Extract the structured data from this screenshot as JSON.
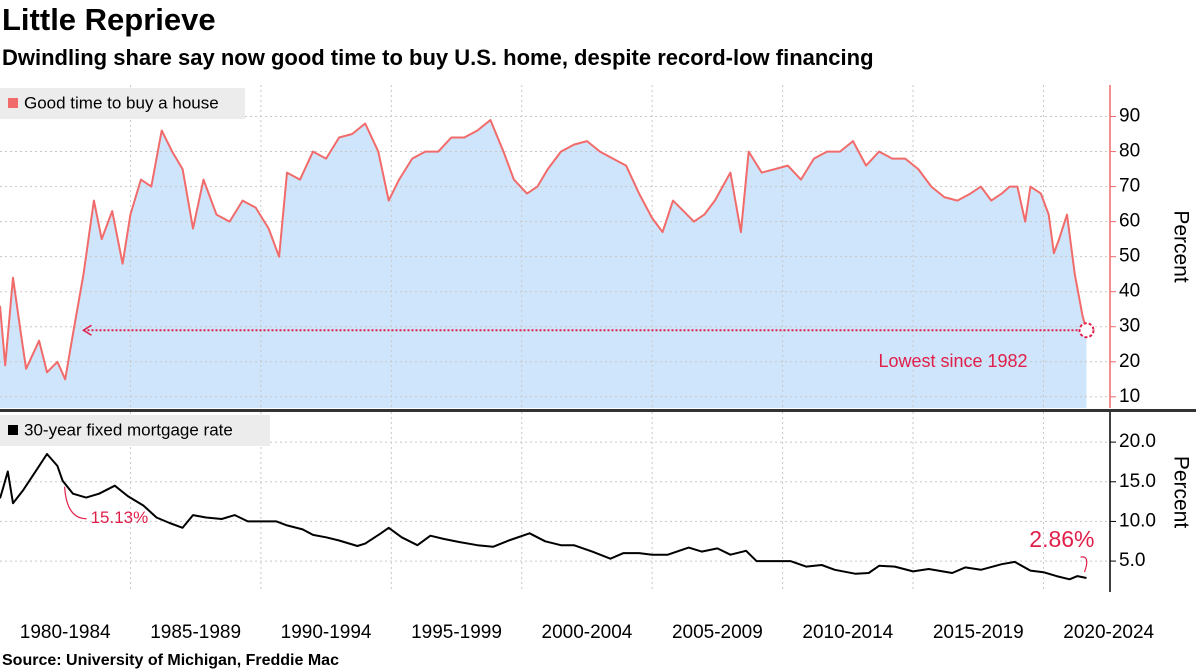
{
  "title": "Little Reprieve",
  "subtitle": "Dwindling share say now good time to buy U.S. home, despite record-low financing",
  "source": "Source: University of Michigan, Freddie Mac",
  "chart_data": [
    {
      "type": "area",
      "series": [
        {
          "name": "Good time to buy a house",
          "color": "#f26b6b",
          "fill": "#cfe5fb",
          "x": [
            1980.0,
            1980.2,
            1980.5,
            1980.8,
            1981.0,
            1981.5,
            1981.8,
            1982.2,
            1982.5,
            1982.8,
            1983.2,
            1983.6,
            1983.9,
            1984.3,
            1984.7,
            1985.0,
            1985.4,
            1985.8,
            1986.2,
            1986.6,
            1987.0,
            1987.4,
            1987.8,
            1988.3,
            1988.8,
            1989.3,
            1989.8,
            1990.3,
            1990.7,
            1991.0,
            1991.5,
            1992.0,
            1992.5,
            1993.0,
            1993.5,
            1994.0,
            1994.5,
            1994.9,
            1995.3,
            1995.8,
            1996.3,
            1996.8,
            1997.3,
            1997.8,
            1998.3,
            1998.8,
            1999.3,
            1999.7,
            2000.2,
            2000.6,
            2001.0,
            2001.5,
            2002.0,
            2002.5,
            2003.0,
            2003.5,
            2004.0,
            2004.5,
            2005.0,
            2005.4,
            2005.8,
            2006.2,
            2006.6,
            2007.0,
            2007.4,
            2007.7,
            2008.0,
            2008.4,
            2008.7,
            2009.2,
            2009.7,
            2010.2,
            2010.7,
            2011.2,
            2011.7,
            2012.2,
            2012.7,
            2013.2,
            2013.7,
            2014.2,
            2014.7,
            2015.2,
            2015.7,
            2016.2,
            2016.7,
            2017.2,
            2017.6,
            2018.0,
            2018.4,
            2018.7,
            2019.0,
            2019.3,
            2019.5,
            2019.9,
            2020.2,
            2020.4,
            2020.6,
            2020.9,
            2021.2,
            2021.5,
            2021.65
          ],
          "values": [
            36,
            19,
            44,
            28,
            18,
            26,
            17,
            20,
            15,
            28,
            45,
            66,
            55,
            63,
            48,
            62,
            72,
            70,
            86,
            80,
            75,
            58,
            72,
            62,
            60,
            66,
            64,
            58,
            50,
            74,
            72,
            80,
            78,
            84,
            85,
            88,
            80,
            66,
            72,
            78,
            80,
            80,
            84,
            84,
            86,
            89,
            80,
            72,
            68,
            70,
            75,
            80,
            82,
            83,
            80,
            78,
            76,
            68,
            61,
            57,
            66,
            63,
            60,
            62,
            66,
            70,
            74,
            57,
            80,
            74,
            75,
            76,
            72,
            78,
            80,
            80,
            83,
            76,
            80,
            78,
            78,
            75,
            70,
            67,
            66,
            68,
            70,
            66,
            68,
            70,
            70,
            60,
            70,
            68,
            62,
            51,
            55,
            62,
            45,
            33,
            29
          ]
        }
      ],
      "xlim": [
        1980,
        2022.55
      ],
      "ylim": [
        6.8,
        99
      ],
      "yticks": [
        10,
        20,
        30,
        40,
        50,
        60,
        70,
        80,
        90
      ],
      "y_label": "Percent",
      "reference_line": {
        "value": 29,
        "from": 1983.2
      },
      "annotation": "Lowest since 1982",
      "grid": true
    },
    {
      "type": "line",
      "series": [
        {
          "name": "30-year fixed mortgage rate",
          "color": "#000000",
          "x": [
            1980.0,
            1980.1,
            1980.3,
            1980.5,
            1980.9,
            1981.3,
            1981.8,
            1982.2,
            1982.4,
            1982.8,
            1983.3,
            1983.8,
            1984.4,
            1984.9,
            1985.5,
            1986.0,
            1986.5,
            1987.0,
            1987.4,
            1987.9,
            1988.5,
            1989.0,
            1989.5,
            1990.0,
            1990.6,
            1991.0,
            1991.6,
            1992.0,
            1992.5,
            1993.0,
            1993.7,
            1994.0,
            1994.6,
            1994.9,
            1995.4,
            1996.0,
            1996.5,
            1997.0,
            1997.6,
            1998.3,
            1998.9,
            1999.5,
            2000.3,
            2000.9,
            2001.5,
            2002.0,
            2002.7,
            2003.4,
            2003.9,
            2004.5,
            2005.0,
            2005.6,
            2006.4,
            2006.9,
            2007.5,
            2008.0,
            2008.6,
            2009.0,
            2009.6,
            2010.3,
            2010.9,
            2011.5,
            2012.0,
            2012.8,
            2013.3,
            2013.7,
            2014.3,
            2015.0,
            2015.6,
            2016.5,
            2017.0,
            2017.6,
            2018.4,
            2018.9,
            2019.5,
            2020.0,
            2020.5,
            2021.0,
            2021.3,
            2021.65
          ],
          "values": [
            12.9,
            14,
            16.3,
            12.3,
            14,
            16,
            18.5,
            17,
            15.13,
            13.5,
            13,
            13.5,
            14.5,
            13.2,
            12,
            10.5,
            9.8,
            9.2,
            10.8,
            10.5,
            10.3,
            10.8,
            10,
            10,
            10,
            9.5,
            9,
            8.3,
            8,
            7.6,
            6.9,
            7.2,
            8.5,
            9.2,
            8,
            7,
            8.2,
            7.8,
            7.4,
            7,
            6.8,
            7.6,
            8.5,
            7.5,
            7,
            7,
            6.2,
            5.3,
            6,
            6,
            5.8,
            5.8,
            6.7,
            6.2,
            6.6,
            5.8,
            6.3,
            5,
            5,
            5,
            4.3,
            4.5,
            3.9,
            3.4,
            3.5,
            4.4,
            4.3,
            3.7,
            4,
            3.5,
            4.2,
            3.9,
            4.6,
            4.9,
            3.8,
            3.6,
            3.1,
            2.7,
            3.1,
            2.86
          ]
        }
      ],
      "xlim": [
        1980,
        2022.55
      ],
      "xticks": [
        {
          "value": 1980,
          "label": "1980-1984"
        },
        {
          "value": 1985,
          "label": "1985-1989"
        },
        {
          "value": 1990,
          "label": "1990-1994"
        },
        {
          "value": 1995,
          "label": "1995-1999"
        },
        {
          "value": 2000,
          "label": "2000-2004"
        },
        {
          "value": 2005,
          "label": "2005-2009"
        },
        {
          "value": 2010,
          "label": "2010-2014"
        },
        {
          "value": 2015,
          "label": "2015-2019"
        },
        {
          "value": 2020,
          "label": "2020-2024"
        }
      ],
      "ylim": [
        1.1,
        23.8
      ],
      "yticks": [
        {
          "value": 5,
          "label": "5.0"
        },
        {
          "value": 10,
          "label": "10.0"
        },
        {
          "value": 15,
          "label": "15.0"
        },
        {
          "value": 20,
          "label": "20.0"
        }
      ],
      "y_label": "Percent",
      "annotations": [
        {
          "label": "15.13%",
          "value": 15.13,
          "x": 1982.4
        },
        {
          "label": "2.86%",
          "value": 2.86,
          "x": 2021.65
        }
      ],
      "grid": true
    }
  ]
}
